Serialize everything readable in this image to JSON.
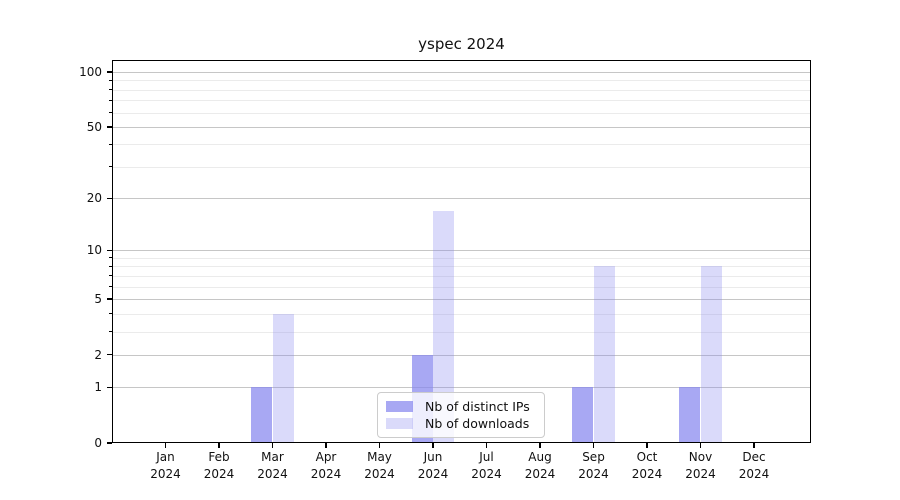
{
  "chart_data": {
    "type": "bar",
    "title": "yspec 2024",
    "categories": [
      "Jan",
      "Feb",
      "Mar",
      "Apr",
      "May",
      "Jun",
      "Jul",
      "Aug",
      "Sep",
      "Oct",
      "Nov",
      "Dec"
    ],
    "year_label": "2024",
    "series": [
      {
        "name": "Nb of distinct IPs",
        "color": "rgba(134,134,238,0.72)",
        "values": [
          0,
          0,
          1,
          0,
          0,
          2,
          0,
          0,
          1,
          0,
          1,
          0
        ]
      },
      {
        "name": "Nb of downloads",
        "color": "rgba(134,134,238,0.30)",
        "values": [
          0,
          0,
          4,
          0,
          0,
          17,
          0,
          0,
          8,
          0,
          8,
          0
        ]
      }
    ],
    "y_scale": "log1p",
    "y_axis": {
      "major_ticks": [
        0,
        1,
        2,
        5,
        10,
        20,
        50,
        100
      ],
      "minor_ticks": [
        3,
        4,
        6,
        7,
        8,
        9,
        30,
        40,
        60,
        70,
        80,
        90
      ],
      "min": 0,
      "top_tick": 100
    },
    "xlabel": "",
    "ylabel": "",
    "grid": true,
    "legend_position": "lower-center"
  },
  "colors": {
    "major_grid": "#c6c6c6",
    "minor_grid": "#ebebeb",
    "spine": "#000000",
    "text": "#111111",
    "legend_border": "#cccccc",
    "legend_bg": "rgba(255,255,255,0.8)"
  }
}
